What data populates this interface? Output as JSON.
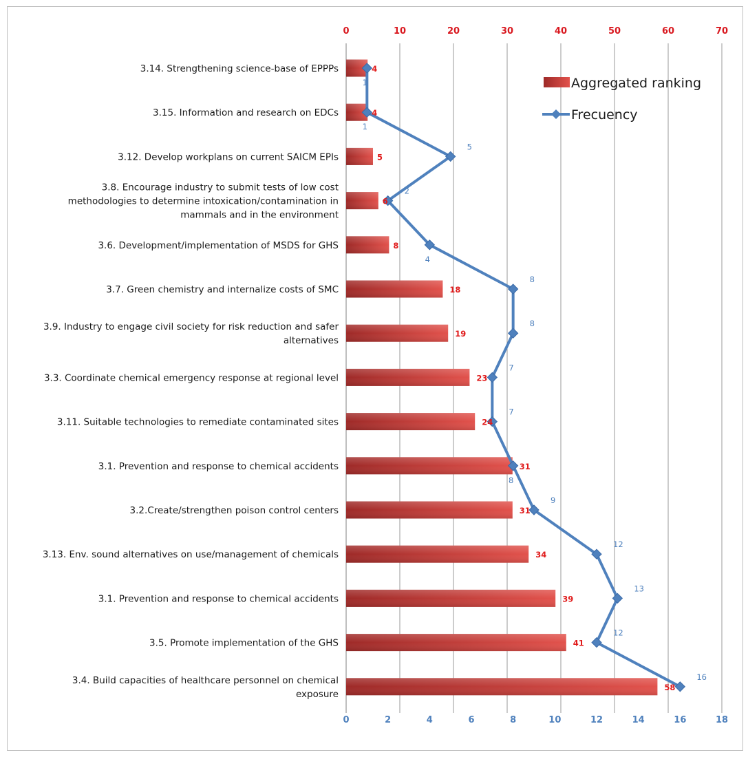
{
  "chart_data": {
    "type": "bar",
    "orientation": "horizontal",
    "categories": [
      "3.14. Strengthening science-base of EPPPs",
      "3.15. Information and research on EDCs",
      "3.12. Develop workplans on current SAICM EPIs",
      "3.8. Encourage industry to submit tests of low cost methodologies to determine intoxication/contamination in mammals and in the environment",
      "3.6. Development/implementation of MSDS for GHS",
      "3.7. Green chemistry and internalize costs of SMC",
      "3.9. Industry to engage civil society for risk reduction and safer alternatives",
      "3.3. Coordinate chemical emergency response at regional level",
      "3.11. Suitable technologies to remediate contaminated sites",
      "3.1. Prevention and response to chemical accidents",
      "3.2.Create/strengthen poison control centers",
      "3.13. Env. sound alternatives on use/management of chemicals",
      "3.1. Prevention and response to chemical accidents",
      "3.5. Promote implementation of the GHS",
      "3.4. Build capacities of healthcare personnel on chemical exposure"
    ],
    "category_lines": [
      [
        "3.14. Strengthening science-base of EPPPs"
      ],
      [
        "3.15. Information and research on EDCs"
      ],
      [
        "3.12. Develop workplans on current SAICM EPIs"
      ],
      [
        "3.8. Encourage industry to submit tests of low cost",
        "methodologies to determine intoxication/contamination in",
        "mammals and in the environment"
      ],
      [
        "3.6. Development/implementation of MSDS for GHS"
      ],
      [
        "3.7. Green chemistry and internalize costs of SMC"
      ],
      [
        "3.9. Industry to engage civil society for risk reduction and safer",
        "alternatives"
      ],
      [
        "3.3. Coordinate chemical emergency response at regional level"
      ],
      [
        "3.11. Suitable technologies to remediate contaminated sites"
      ],
      [
        "3.1. Prevention and response to chemical accidents"
      ],
      [
        "3.2.Create/strengthen poison control centers"
      ],
      [
        "3.13. Env. sound alternatives on use/management of chemicals"
      ],
      [
        "3.1. Prevention and response to chemical accidents"
      ],
      [
        "3.5. Promote implementation of the GHS"
      ],
      [
        "3.4. Build capacities of healthcare personnel on chemical",
        "exposure"
      ]
    ],
    "series": [
      {
        "name": "Aggregated ranking",
        "type": "bar",
        "axis": "top",
        "color": "#c0302e",
        "values": [
          4,
          4,
          5,
          6,
          8,
          18,
          19,
          23,
          24,
          31,
          31,
          34,
          39,
          41,
          58
        ],
        "labels": [
          "4",
          "4",
          "5",
          "6",
          "8",
          "18",
          "19",
          "23",
          "24",
          "31",
          "31",
          "34",
          "39",
          "41",
          "58"
        ]
      },
      {
        "name": "Frecuency",
        "type": "line",
        "axis": "bottom",
        "color": "#4f81bd",
        "values": [
          1,
          1,
          5,
          2,
          4,
          8,
          8,
          7,
          7,
          8,
          9,
          12,
          13,
          12,
          16
        ],
        "labels": [
          "1",
          "1",
          "5",
          "2",
          "4",
          "8",
          "8",
          "7",
          "7",
          "8",
          "9",
          "12",
          "13",
          "12",
          "16"
        ]
      }
    ],
    "top_axis": {
      "min": 0,
      "max": 70,
      "ticks": [
        "0",
        "10",
        "20",
        "30",
        "40",
        "50",
        "60",
        "70"
      ],
      "color": "#d9181f"
    },
    "bottom_axis": {
      "min": 0,
      "max": 18,
      "ticks": [
        "0",
        "2",
        "4",
        "6",
        "8",
        "10",
        "12",
        "14",
        "16",
        "18"
      ],
      "color": "#4f81bd"
    },
    "grid": "vertical",
    "legend_position": "top-right"
  }
}
